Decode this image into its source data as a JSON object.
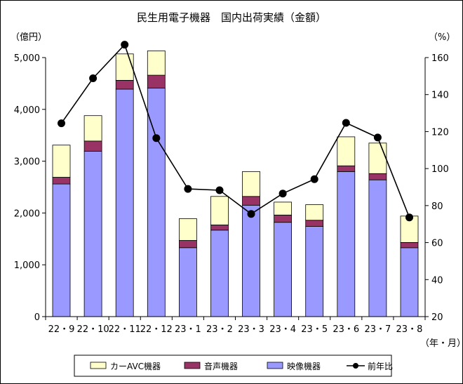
{
  "chart_data": {
    "type": "bar",
    "subtype": "stacked-bar-with-line",
    "title": "民生用電子機器　国内出荷実績（金額）",
    "left_unit": "（億円）",
    "right_unit": "（%）",
    "x_unit": "（年・月）",
    "categories": [
      "22・9",
      "22・10",
      "22・11",
      "22・12",
      "23・1",
      "23・2",
      "23・3",
      "23・4",
      "23・5",
      "23・6",
      "23・7",
      "23・8"
    ],
    "left_axis": {
      "min": 0,
      "max": 5000,
      "ticks": [
        "0",
        "1,000",
        "2,000",
        "3,000",
        "4,000",
        "5,000"
      ],
      "tick_values": [
        0,
        1000,
        2000,
        3000,
        4000,
        5000
      ]
    },
    "right_axis": {
      "min": 20,
      "max": 160,
      "ticks": [
        "20",
        "40",
        "60",
        "80",
        "100",
        "120",
        "140",
        "160"
      ],
      "tick_values": [
        20,
        40,
        60,
        80,
        100,
        120,
        140,
        160
      ]
    },
    "series": [
      {
        "name": "映像機器",
        "kind": "bar",
        "axis": "left",
        "color": "#9999ff",
        "values": [
          2560,
          3190,
          4390,
          4410,
          1330,
          1670,
          2150,
          1820,
          1740,
          2800,
          2640,
          1330
        ]
      },
      {
        "name": "音声機器",
        "kind": "bar",
        "axis": "left",
        "color": "#993366",
        "values": [
          130,
          200,
          170,
          250,
          140,
          100,
          170,
          140,
          120,
          110,
          120,
          100
        ]
      },
      {
        "name": "カーAVC機器",
        "kind": "bar",
        "axis": "left",
        "color": "#ffffcc",
        "values": [
          620,
          490,
          510,
          470,
          420,
          550,
          480,
          250,
          300,
          560,
          590,
          510
        ]
      },
      {
        "name": "前年比",
        "kind": "line",
        "axis": "right",
        "color": "#000000",
        "values": [
          124.5,
          148.8,
          167.0,
          116.5,
          89.0,
          88.3,
          75.5,
          86.5,
          94.3,
          124.7,
          116.8,
          73.6
        ]
      }
    ],
    "legend": {
      "placement": "bottom",
      "items": [
        {
          "label": "カーAVC機器",
          "swatch": "#ffffcc"
        },
        {
          "label": "音声機器",
          "swatch": "#993366"
        },
        {
          "label": "映像機器",
          "swatch": "#9999ff"
        },
        {
          "label": "前年比",
          "swatch": "#000000"
        }
      ]
    },
    "grid": false
  }
}
